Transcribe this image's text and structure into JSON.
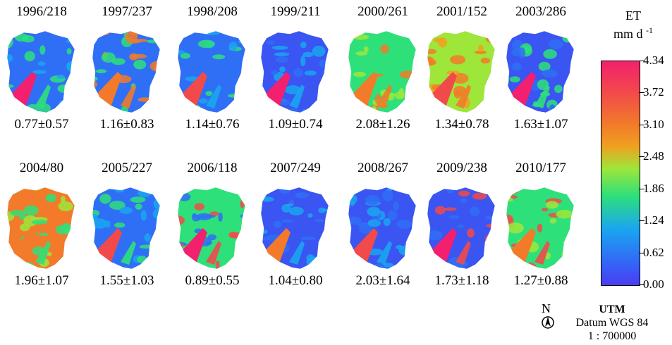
{
  "panels_row1": [
    {
      "date": "1996/218",
      "stat": "0.77±0.57"
    },
    {
      "date": "1997/237",
      "stat": "1.16±0.83"
    },
    {
      "date": "1998/208",
      "stat": "1.14±0.76"
    },
    {
      "date": "1999/211",
      "stat": "1.09±0.74"
    },
    {
      "date": "2000/261",
      "stat": "2.08±1.26"
    },
    {
      "date": "2001/152",
      "stat": "1.34±0.78"
    },
    {
      "date": "2003/286",
      "stat": "1.63±1.07"
    }
  ],
  "panels_row2": [
    {
      "date": "2004/80",
      "stat": "1.96±1.07"
    },
    {
      "date": "2005/227",
      "stat": "1.55±1.03"
    },
    {
      "date": "2006/118",
      "stat": "0.89±0.55"
    },
    {
      "date": "2007/249",
      "stat": "1.04±0.80"
    },
    {
      "date": "2008/267",
      "stat": "2.03±1.64"
    },
    {
      "date": "2009/238",
      "stat": "1.73±1.18"
    },
    {
      "date": "2010/177",
      "stat": "1.27±0.88"
    }
  ],
  "legend": {
    "title_line1": "ET",
    "title_line2": "mm d",
    "title_sup": "-1",
    "ticks": [
      "4.34",
      "3.72",
      "3.10",
      "2.48",
      "1.86",
      "1.24",
      "0.62",
      "0.00"
    ],
    "colors": [
      "#f2206e",
      "#f24a4a",
      "#f27a2a",
      "#f0a020",
      "#9ee63a",
      "#2ee07a",
      "#1aa6f0",
      "#4a3cf2"
    ]
  },
  "map_info": {
    "north": "N",
    "projection": "UTM",
    "datum": "Datum WGS 84",
    "scale": "1 : 700000"
  },
  "map_palettes": [
    [
      "#2f6ff6",
      "#1aa6f0",
      "#2ee07a"
    ],
    [
      "#2f6ff6",
      "#2ee07a",
      "#f27a2a"
    ],
    [
      "#2f6ff6",
      "#2ee07a",
      "#1aa6f0"
    ],
    [
      "#3a55f2",
      "#2f6ff6",
      "#1aa6f0"
    ],
    [
      "#2ee07a",
      "#9ee63a",
      "#f27a2a"
    ],
    [
      "#9ee63a",
      "#f0a020",
      "#f27a2a"
    ],
    [
      "#3a55f2",
      "#2f6ff6",
      "#2ee07a"
    ],
    [
      "#f27a2a",
      "#9ee63a",
      "#2ee07a"
    ],
    [
      "#2f6ff6",
      "#1aa6f0",
      "#2ee07a"
    ],
    [
      "#2ee07a",
      "#2f6ff6",
      "#f24a4a"
    ],
    [
      "#3a55f2",
      "#2f6ff6",
      "#1aa6f0"
    ],
    [
      "#3a55f2",
      "#2f6ff6",
      "#1aa6f0"
    ],
    [
      "#3a55f2",
      "#2f6ff6",
      "#f24a4a"
    ],
    [
      "#2ee07a",
      "#9ee63a",
      "#f24a4a"
    ]
  ]
}
